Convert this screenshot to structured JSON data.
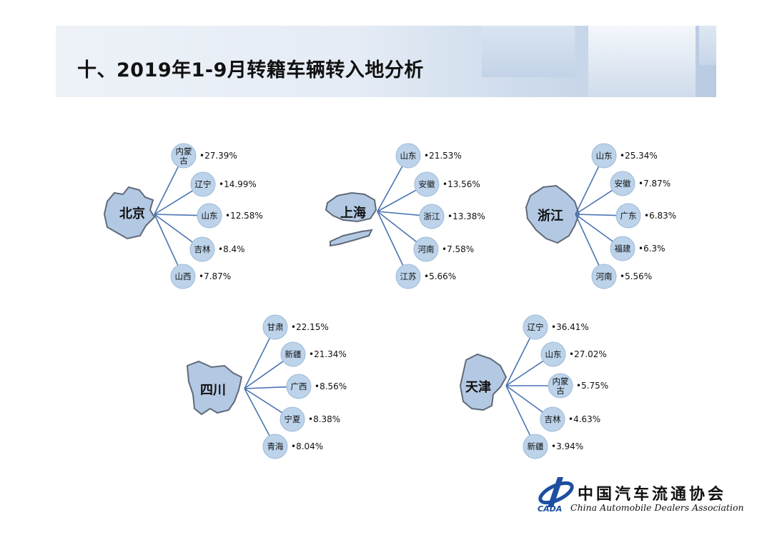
{
  "title": "十、2019年1-9月转籍车辆转入地分析",
  "colors": {
    "node_fill": "#bcd3ea",
    "node_stroke": "#9fbad7",
    "line": "#4a74b2",
    "map_fill": "#b3c9e3",
    "map_stroke": "#606a78",
    "text": "#111111"
  },
  "logo": {
    "cn": "中国汽车流通协会",
    "en": "China Automobile Dealers Association",
    "abbr": "CADA"
  },
  "chart_data": [
    {
      "type": "radial",
      "hub": "北京",
      "targets": [
        "内蒙古",
        "辽宁",
        "山东",
        "吉林",
        "山西"
      ],
      "values_pct": [
        27.39,
        14.99,
        12.58,
        8.4,
        7.87
      ],
      "labels": [
        "27.39%",
        "14.99%",
        "12.58%",
        "8.4%",
        "7.87%"
      ]
    },
    {
      "type": "radial",
      "hub": "上海",
      "targets": [
        "山东",
        "安徽",
        "浙江",
        "河南",
        "江苏"
      ],
      "values_pct": [
        21.53,
        13.56,
        13.38,
        7.58,
        5.66
      ],
      "labels": [
        "21.53%",
        "13.56%",
        "13.38%",
        "7.58%",
        "5.66%"
      ]
    },
    {
      "type": "radial",
      "hub": "浙江",
      "targets": [
        "山东",
        "安徽",
        "广东",
        "福建",
        "河南"
      ],
      "values_pct": [
        25.34,
        7.87,
        6.83,
        6.3,
        5.56
      ],
      "labels": [
        "25.34%",
        "7.87%",
        "6.83%",
        "6.3%",
        "5.56%"
      ]
    },
    {
      "type": "radial",
      "hub": "四川",
      "targets": [
        "甘肃",
        "新疆",
        "广西",
        "宁夏",
        "青海"
      ],
      "values_pct": [
        22.15,
        21.34,
        8.56,
        8.38,
        8.04
      ],
      "labels": [
        "22.15%",
        "21.34%",
        "8.56%",
        "8.38%",
        "8.04%"
      ]
    },
    {
      "type": "radial",
      "hub": "天津",
      "targets": [
        "辽宁",
        "山东",
        "内蒙古",
        "吉林",
        "新疆"
      ],
      "values_pct": [
        36.41,
        27.02,
        5.75,
        4.63,
        3.94
      ],
      "labels": [
        "36.41%",
        "27.02%",
        "5.75%",
        "4.63%",
        "3.94%"
      ]
    }
  ]
}
